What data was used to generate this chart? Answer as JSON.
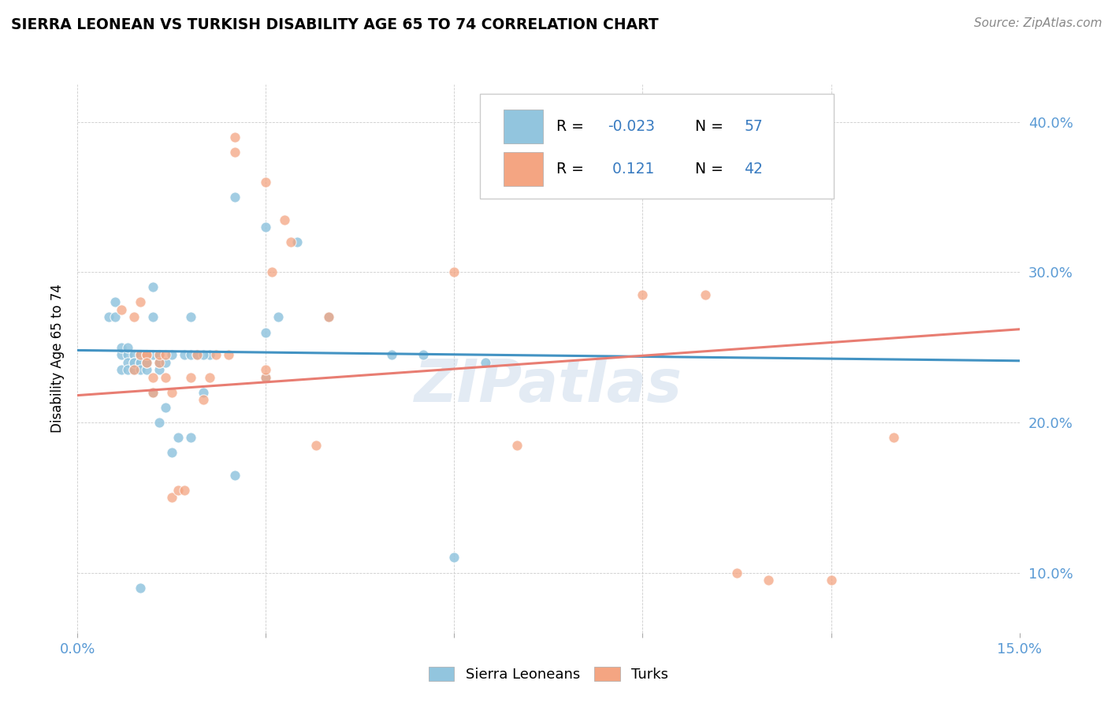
{
  "title": "SIERRA LEONEAN VS TURKISH DISABILITY AGE 65 TO 74 CORRELATION CHART",
  "source": "Source: ZipAtlas.com",
  "ylabel_label": "Disability Age 65 to 74",
  "xlabel_min": 0.0,
  "xlabel_max": 0.15,
  "ylabel_min": 0.06,
  "ylabel_max": 0.425,
  "watermark": "ZIPatlas",
  "blue_color": "#92c5de",
  "pink_color": "#f4a582",
  "blue_line_color": "#4393c3",
  "pink_line_color": "#e87d72",
  "blue_scatter": [
    [
      0.005,
      0.27
    ],
    [
      0.006,
      0.27
    ],
    [
      0.006,
      0.28
    ],
    [
      0.007,
      0.245
    ],
    [
      0.007,
      0.235
    ],
    [
      0.007,
      0.25
    ],
    [
      0.008,
      0.245
    ],
    [
      0.008,
      0.25
    ],
    [
      0.008,
      0.24
    ],
    [
      0.008,
      0.235
    ],
    [
      0.009,
      0.245
    ],
    [
      0.009,
      0.24
    ],
    [
      0.009,
      0.235
    ],
    [
      0.009,
      0.24
    ],
    [
      0.01,
      0.24
    ],
    [
      0.01,
      0.245
    ],
    [
      0.01,
      0.24
    ],
    [
      0.01,
      0.235
    ],
    [
      0.011,
      0.245
    ],
    [
      0.011,
      0.24
    ],
    [
      0.011,
      0.235
    ],
    [
      0.011,
      0.24
    ],
    [
      0.012,
      0.27
    ],
    [
      0.012,
      0.29
    ],
    [
      0.012,
      0.245
    ],
    [
      0.013,
      0.24
    ],
    [
      0.013,
      0.235
    ],
    [
      0.013,
      0.2
    ],
    [
      0.013,
      0.245
    ],
    [
      0.013,
      0.24
    ],
    [
      0.014,
      0.21
    ],
    [
      0.014,
      0.24
    ],
    [
      0.015,
      0.245
    ],
    [
      0.015,
      0.18
    ],
    [
      0.016,
      0.19
    ],
    [
      0.017,
      0.245
    ],
    [
      0.018,
      0.27
    ],
    [
      0.018,
      0.245
    ],
    [
      0.018,
      0.19
    ],
    [
      0.019,
      0.245
    ],
    [
      0.02,
      0.22
    ],
    [
      0.021,
      0.245
    ],
    [
      0.025,
      0.35
    ],
    [
      0.03,
      0.33
    ],
    [
      0.03,
      0.26
    ],
    [
      0.03,
      0.23
    ],
    [
      0.032,
      0.27
    ],
    [
      0.035,
      0.32
    ],
    [
      0.04,
      0.27
    ],
    [
      0.05,
      0.245
    ],
    [
      0.055,
      0.245
    ],
    [
      0.06,
      0.11
    ],
    [
      0.065,
      0.24
    ],
    [
      0.01,
      0.09
    ],
    [
      0.025,
      0.165
    ],
    [
      0.02,
      0.245
    ],
    [
      0.012,
      0.22
    ]
  ],
  "pink_scatter": [
    [
      0.007,
      0.275
    ],
    [
      0.009,
      0.27
    ],
    [
      0.009,
      0.235
    ],
    [
      0.01,
      0.28
    ],
    [
      0.01,
      0.245
    ],
    [
      0.011,
      0.245
    ],
    [
      0.011,
      0.245
    ],
    [
      0.011,
      0.24
    ],
    [
      0.012,
      0.23
    ],
    [
      0.012,
      0.22
    ],
    [
      0.013,
      0.24
    ],
    [
      0.013,
      0.245
    ],
    [
      0.014,
      0.245
    ],
    [
      0.014,
      0.23
    ],
    [
      0.015,
      0.22
    ],
    [
      0.015,
      0.15
    ],
    [
      0.016,
      0.155
    ],
    [
      0.017,
      0.155
    ],
    [
      0.018,
      0.23
    ],
    [
      0.019,
      0.245
    ],
    [
      0.02,
      0.215
    ],
    [
      0.021,
      0.23
    ],
    [
      0.022,
      0.245
    ],
    [
      0.024,
      0.245
    ],
    [
      0.025,
      0.39
    ],
    [
      0.025,
      0.38
    ],
    [
      0.03,
      0.36
    ],
    [
      0.03,
      0.23
    ],
    [
      0.03,
      0.235
    ],
    [
      0.031,
      0.3
    ],
    [
      0.033,
      0.335
    ],
    [
      0.034,
      0.32
    ],
    [
      0.038,
      0.185
    ],
    [
      0.04,
      0.27
    ],
    [
      0.06,
      0.3
    ],
    [
      0.07,
      0.185
    ],
    [
      0.09,
      0.285
    ],
    [
      0.1,
      0.285
    ],
    [
      0.105,
      0.1
    ],
    [
      0.11,
      0.095
    ],
    [
      0.12,
      0.095
    ],
    [
      0.13,
      0.19
    ]
  ],
  "blue_trend_x": [
    0.0,
    0.15
  ],
  "blue_trend_y": [
    0.248,
    0.241
  ],
  "pink_trend_x": [
    0.0,
    0.15
  ],
  "pink_trend_y": [
    0.218,
    0.262
  ],
  "x_tick_vals": [
    0.0,
    0.03,
    0.06,
    0.09,
    0.12,
    0.15
  ],
  "y_tick_vals": [
    0.1,
    0.2,
    0.3,
    0.4
  ]
}
